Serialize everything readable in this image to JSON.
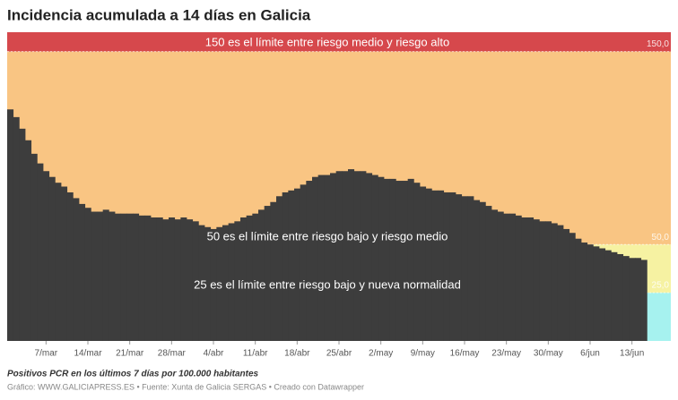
{
  "chart_data": {
    "type": "step-area",
    "title": "Incidencia acumulada a 14 días en Galicia",
    "categories": [
      null,
      null,
      null,
      null,
      null,
      null,
      "7/mar",
      null,
      null,
      null,
      null,
      null,
      null,
      "14/mar",
      null,
      null,
      null,
      null,
      null,
      null,
      "21/mar",
      null,
      null,
      null,
      null,
      null,
      null,
      "28/mar",
      null,
      null,
      null,
      null,
      null,
      null,
      "4/abr",
      null,
      null,
      null,
      null,
      null,
      null,
      "11/abr",
      null,
      null,
      null,
      null,
      null,
      null,
      "18/abr",
      null,
      null,
      null,
      null,
      null,
      null,
      "25/abr",
      null,
      null,
      null,
      null,
      null,
      null,
      "2/may",
      null,
      null,
      null,
      null,
      null,
      null,
      "9/may",
      null,
      null,
      null,
      null,
      null,
      null,
      "16/may",
      null,
      null,
      null,
      null,
      null,
      null,
      "23/may",
      null,
      null,
      null,
      null,
      null,
      null,
      "30/may",
      null,
      null,
      null,
      null,
      null,
      null,
      "6/jun",
      null,
      null,
      null,
      null,
      null,
      null,
      "13/jun",
      null,
      null
    ],
    "values": [
      120,
      116,
      110,
      104,
      97,
      92,
      88,
      85,
      82,
      80,
      77,
      74,
      71,
      69,
      67,
      67,
      68,
      67,
      66,
      66,
      66,
      66,
      65,
      65,
      64,
      64,
      63,
      64,
      63,
      64,
      63,
      62,
      60,
      59,
      58,
      59,
      60,
      61,
      62,
      64,
      65,
      66,
      68,
      70,
      72,
      75,
      77,
      78,
      79,
      81,
      83,
      85,
      86,
      86,
      87,
      88,
      88,
      89,
      88,
      88,
      87,
      86,
      85,
      84,
      84,
      83,
      83,
      84,
      82,
      80,
      79,
      78,
      78,
      77,
      77,
      76,
      75,
      75,
      73,
      72,
      70,
      68,
      67,
      66,
      66,
      65,
      64,
      64,
      63,
      62,
      62,
      61,
      60,
      58,
      56,
      53,
      51,
      50,
      49,
      48,
      47,
      46,
      45,
      44,
      43,
      43,
      42
    ],
    "color": "#3d3d3d",
    "ylim": [
      0,
      160
    ],
    "yticks": [
      {
        "value": 25,
        "label": "25,0"
      },
      {
        "value": 50,
        "label": "50,0"
      },
      {
        "value": 150,
        "label": "150,0"
      }
    ],
    "bands": [
      {
        "from": 0,
        "to": 25,
        "color": "#a6f2ef"
      },
      {
        "from": 25,
        "to": 50,
        "color": "#f6f2a2"
      },
      {
        "from": 50,
        "to": 150,
        "color": "#f9c583"
      },
      {
        "from": 150,
        "to": 160,
        "color": "#d6484c"
      }
    ],
    "annotations": [
      "150 es el límite entre riesgo medio y riesgo alto",
      "50 es el límite entre riesgo bajo y riesgo medio",
      "25 es el límite entre riesgo bajo y nueva normalidad"
    ],
    "caption": "Positivos PCR en los últimos 7 días por 100.000 habitantes",
    "source": "Gráfico: WWW.GALICIAPRESS.ES • Fuente: Xunta de Galicia SERGAS • Creado con Datawrapper"
  }
}
